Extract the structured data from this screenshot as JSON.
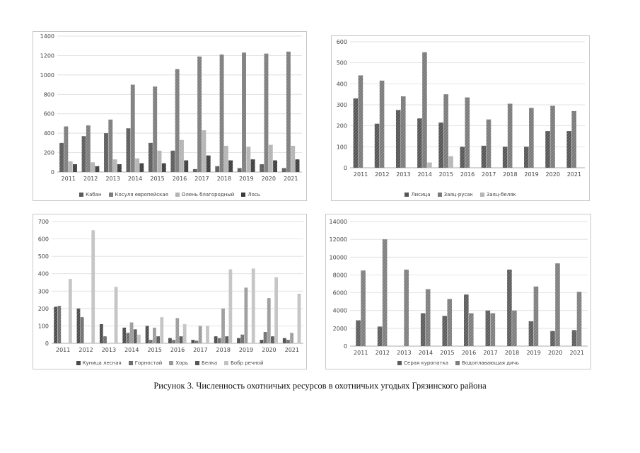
{
  "caption": "Рисунок 3. Численность охотничьих ресурсов в охотничьих угодьях Грязинского района",
  "chart_data": [
    {
      "type": "bar",
      "categories": [
        "2011",
        "2012",
        "2013",
        "2014",
        "2015",
        "2016",
        "2017",
        "2018",
        "2019",
        "2020",
        "2021"
      ],
      "ylim": [
        0,
        1400
      ],
      "yticks": [
        "0",
        "200",
        "400",
        "600",
        "800",
        "1000",
        "1200",
        "1400"
      ],
      "series": [
        {
          "name": "Кабан",
          "color": "#5a5a5a",
          "values": [
            300,
            370,
            400,
            450,
            300,
            220,
            30,
            60,
            40,
            80,
            40
          ]
        },
        {
          "name": "Косуля европейская",
          "color": "#7c7c7c",
          "values": [
            470,
            480,
            540,
            900,
            880,
            1060,
            1190,
            1210,
            1230,
            1220,
            1240
          ]
        },
        {
          "name": "Олень благородный",
          "color": "#b3b3b3",
          "values": [
            110,
            100,
            130,
            140,
            220,
            330,
            430,
            270,
            260,
            280,
            270
          ]
        },
        {
          "name": "Лось",
          "color": "#3c3c3c",
          "values": [
            80,
            60,
            80,
            90,
            90,
            120,
            170,
            120,
            130,
            120,
            130
          ]
        }
      ]
    },
    {
      "type": "bar",
      "categories": [
        "2011",
        "2012",
        "2013",
        "2014",
        "2015",
        "2016",
        "2017",
        "2018",
        "2019",
        "2020",
        "2021"
      ],
      "ylim": [
        0,
        600
      ],
      "yticks": [
        "0",
        "100",
        "200",
        "300",
        "400",
        "500",
        "600"
      ],
      "series": [
        {
          "name": "Лисица",
          "color": "#555555",
          "values": [
            330,
            210,
            275,
            235,
            215,
            100,
            105,
            100,
            100,
            175,
            175
          ]
        },
        {
          "name": "Заяц-русак",
          "color": "#7a7a7a",
          "values": [
            440,
            415,
            340,
            550,
            350,
            335,
            230,
            305,
            285,
            295,
            270
          ]
        },
        {
          "name": "Заяц-беляк",
          "color": "#b5b5b5",
          "values": [
            0,
            0,
            0,
            25,
            55,
            0,
            0,
            0,
            0,
            0,
            0
          ]
        }
      ]
    },
    {
      "type": "bar",
      "categories": [
        "2011",
        "2012",
        "2013",
        "2014",
        "2015",
        "2016",
        "2017",
        "2018",
        "2019",
        "2020",
        "2021"
      ],
      "ylim": [
        0,
        700
      ],
      "yticks": [
        "0",
        "100",
        "200",
        "300",
        "400",
        "500",
        "600",
        "700"
      ],
      "series": [
        {
          "name": "Куница лесная",
          "color": "#4a4a4a",
          "values": [
            210,
            200,
            110,
            90,
            100,
            30,
            20,
            40,
            30,
            20,
            30
          ]
        },
        {
          "name": "Горностай",
          "color": "#6e6e6e",
          "values": [
            215,
            150,
            40,
            60,
            20,
            20,
            15,
            30,
            50,
            65,
            20
          ]
        },
        {
          "name": "Хорь",
          "color": "#9a9a9a",
          "values": [
            0,
            0,
            0,
            120,
            90,
            145,
            100,
            200,
            320,
            260,
            60
          ]
        },
        {
          "name": "Белка",
          "color": "#565656",
          "values": [
            0,
            0,
            0,
            80,
            40,
            40,
            0,
            40,
            0,
            40,
            0
          ]
        },
        {
          "name": "Бобр речной",
          "color": "#c2c2c2",
          "values": [
            370,
            650,
            325,
            50,
            150,
            110,
            100,
            425,
            430,
            380,
            285
          ]
        }
      ]
    },
    {
      "type": "bar",
      "categories": [
        "2011",
        "2012",
        "2013",
        "2014",
        "2015",
        "2016",
        "2017",
        "2018",
        "2019",
        "2020",
        "2021"
      ],
      "ylim": [
        0,
        14000
      ],
      "yticks": [
        "0",
        "2000",
        "4000",
        "6000",
        "8000",
        "10000",
        "12000",
        "14000"
      ],
      "series": [
        {
          "name": "Серая куропатка",
          "color": "#5c5c5c",
          "values": [
            2900,
            2200,
            0,
            3700,
            3400,
            5800,
            4000,
            8600,
            2800,
            1700,
            1800
          ]
        },
        {
          "name": "Водоплавающая дичь",
          "color": "#7e7e7e",
          "values": [
            8500,
            12000,
            8600,
            6400,
            5300,
            3700,
            3700,
            4000,
            6700,
            9300,
            6100
          ]
        }
      ]
    }
  ]
}
